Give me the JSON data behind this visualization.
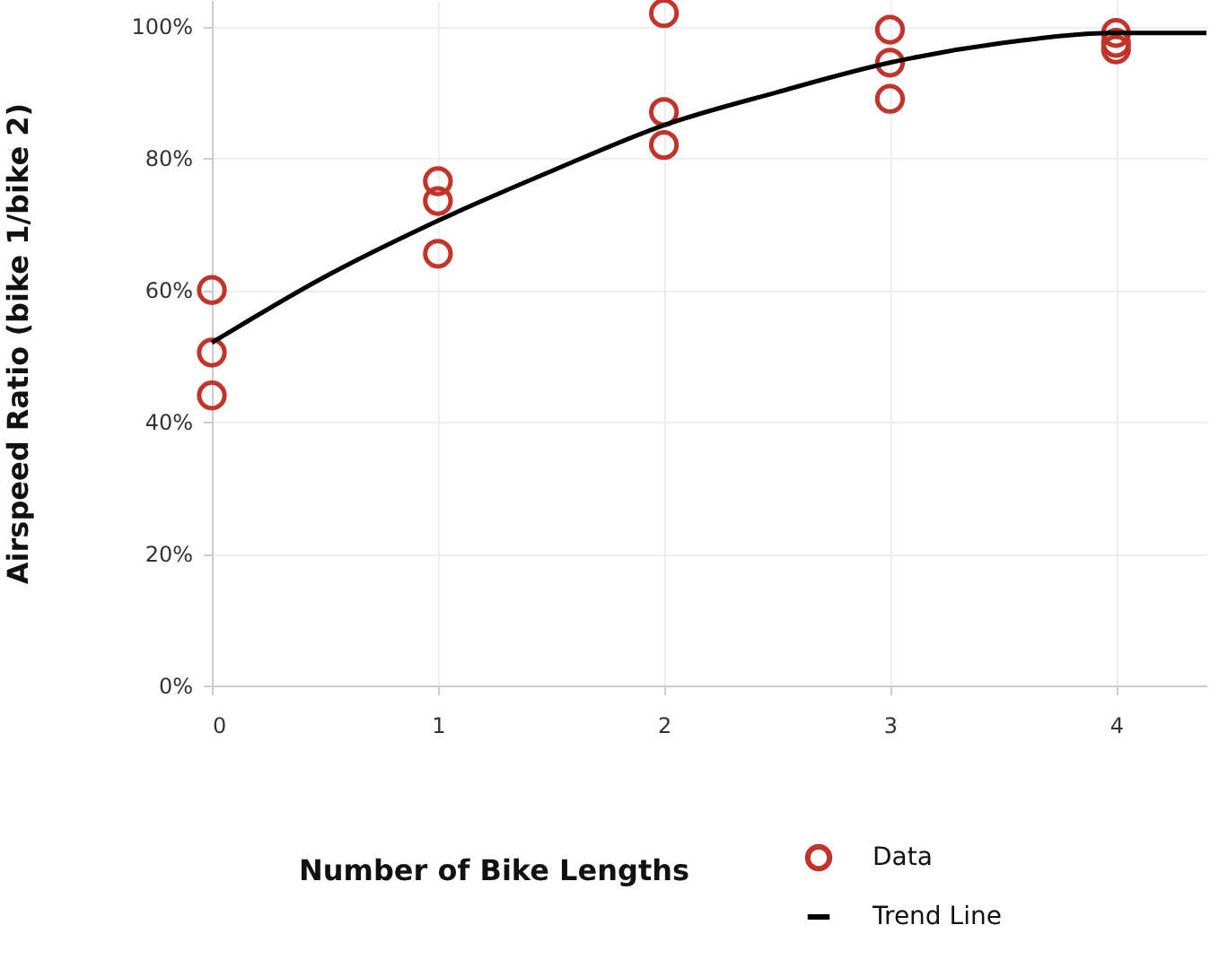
{
  "chart_data": {
    "type": "scatter",
    "xlabel": "Number of Bike Lengths",
    "ylabel": "Airspeed Ratio (bike 1/bike 2)",
    "xlim": [
      0,
      4.4
    ],
    "xticks": [
      0,
      1,
      2,
      3,
      4
    ],
    "ylim": [
      0,
      104
    ],
    "yticks": [
      {
        "value": 0,
        "label": "0%"
      },
      {
        "value": 20,
        "label": "20%"
      },
      {
        "value": 40,
        "label": "40%"
      },
      {
        "value": 60,
        "label": "60%"
      },
      {
        "value": 80,
        "label": "80%"
      },
      {
        "value": 100,
        "label": "100%"
      }
    ],
    "grid": true,
    "legend": "bottom right",
    "series": [
      {
        "name": "Data",
        "marker": "circle",
        "color": "#c4332a",
        "x": [
          0,
          0,
          0,
          1,
          1,
          1,
          2,
          2,
          2,
          3,
          3,
          3,
          4,
          4,
          4
        ],
        "values": [
          60,
          50.5,
          44,
          76.5,
          73.5,
          65.5,
          102,
          87,
          82,
          99.5,
          94.5,
          89,
          99,
          97.5,
          96.5
        ]
      },
      {
        "name": "Trend Line",
        "type": "line",
        "color": "#000000",
        "x": [
          0,
          0.5,
          1,
          1.5,
          2,
          2.5,
          3,
          3.5,
          4,
          4.4
        ],
        "values": [
          52,
          62,
          70.5,
          78,
          85,
          90,
          94.5,
          97.5,
          99,
          99
        ]
      }
    ]
  }
}
